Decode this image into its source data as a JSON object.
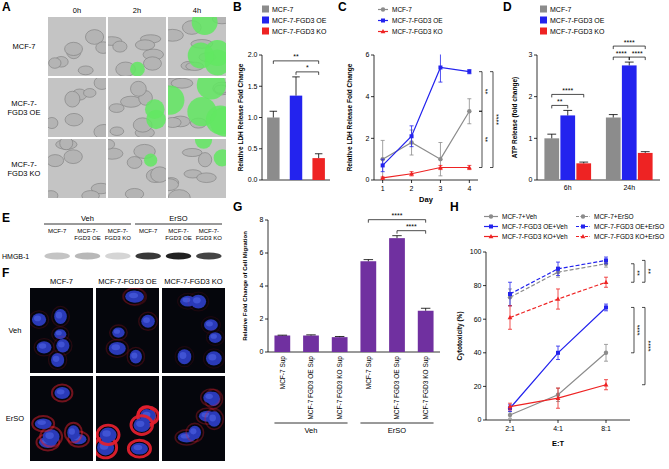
{
  "chart_data": [
    {
      "type": "image_grid",
      "panel": "A",
      "columns": [
        "0h",
        "2h",
        "4h"
      ],
      "rows": [
        "MCF-7",
        "MCF-7-FGD3 OE",
        "MCF-7-FGD3 KO"
      ]
    },
    {
      "type": "bar",
      "panel": "B",
      "y_label": "Relative LDH Release Fold Change",
      "categories": [
        "MCF-7",
        "MCF-7-FGD3 OE",
        "MCF-7-FGD3 KO"
      ],
      "values": [
        1.0,
        1.35,
        0.35
      ],
      "errors": [
        0.1,
        0.3,
        0.07
      ],
      "colors": [
        "#8c8c8c",
        "#2323ee",
        "#ee2323"
      ],
      "ylim": [
        0,
        2
      ],
      "yticks": [
        {
          "value": 0,
          "label": "0.0"
        },
        {
          "value": 0.5,
          "label": "0.5"
        },
        {
          "value": 1,
          "label": "1.0"
        },
        {
          "value": 1.5,
          "label": "1.5"
        },
        {
          "value": 2,
          "label": "2.0"
        }
      ],
      "legend": "top",
      "tick_labels": "y",
      "annotations": [
        "**",
        "*"
      ]
    },
    {
      "type": "line",
      "panel": "C",
      "x_label": "Day",
      "y_label": "Relative LDH Release Fold Change",
      "x": [
        1,
        2,
        3,
        4
      ],
      "xlim": [
        0.7,
        4.3
      ],
      "xticks": [
        1,
        2,
        3,
        4
      ],
      "ylim": [
        0,
        6
      ],
      "yticks": [
        0,
        2,
        4,
        6
      ],
      "legend": "top-left",
      "series": [
        {
          "name": "MCF-7",
          "color": "#8c8c8c",
          "marker": "circle",
          "values": [
            1.0,
            1.8,
            1.0,
            3.3
          ],
          "errors": [
            0.9,
            0.6,
            0.8,
            0.6
          ]
        },
        {
          "name": "MCF-7-FGD3 OE",
          "color": "#2323ee",
          "marker": "square",
          "values": [
            0.7,
            2.1,
            5.4,
            5.2
          ],
          "errors": [
            0.3,
            0.5,
            0.7,
            0.1
          ]
        },
        {
          "name": "MCF-7-FGD3 KO",
          "color": "#ee2323",
          "marker": "triangle",
          "values": [
            0.1,
            0.3,
            0.6,
            0.6
          ],
          "errors": [
            0.05,
            0.1,
            0.1,
            0.1
          ]
        }
      ],
      "annotations": [
        "**",
        "**",
        "****"
      ]
    },
    {
      "type": "bar",
      "panel": "D",
      "y_label": "ATP Release (fold change)",
      "categories": [
        "6h",
        "24h"
      ],
      "series": [
        {
          "name": "MCF-7",
          "color": "#8c8c8c",
          "values": [
            1.0,
            1.5
          ],
          "errors": [
            0.1,
            0.07
          ]
        },
        {
          "name": "MCF-7-FGD3 OE",
          "color": "#2323ee",
          "values": [
            1.55,
            2.75
          ],
          "errors": [
            0.12,
            0.08
          ]
        },
        {
          "name": "MCF-7-FGD3 KO",
          "color": "#ee2323",
          "values": [
            0.4,
            0.65
          ],
          "errors": [
            0.03,
            0.03
          ]
        }
      ],
      "ylim": [
        0,
        3
      ],
      "yticks": [
        0,
        1,
        2,
        3
      ],
      "legend": "top-left",
      "annotations": [
        "**",
        "****",
        "****",
        "****",
        "****"
      ]
    },
    {
      "type": "blot",
      "panel": "E",
      "groups": [
        "Veh",
        "ErSO"
      ],
      "lanes": [
        "MCF-7",
        "MCF-7-FGD3 OE",
        "MCF-7-FGD3 KO"
      ],
      "band_label": "HMGB-1"
    },
    {
      "type": "image_grid",
      "panel": "F",
      "rows": [
        "Veh",
        "ErSO"
      ],
      "columns": [
        "MCF-7",
        "MCF-7-FGD3 OE",
        "MCF-7-FGD3 KO"
      ]
    },
    {
      "type": "bar",
      "panel": "G",
      "y_label": "Relative Fold Change of Cell Migration",
      "categories": [
        "MCF-7 Sup",
        "MCF-7 FGD3 OE Sup",
        "MCF-7 FGD3 KO Sup",
        "MCF-7 Sup",
        "MCF-7 FGD3 OE Sup",
        "MCF-7 FGD3 KO Sup"
      ],
      "groups": [
        "Veh",
        "ErSO"
      ],
      "values": [
        1.0,
        1.0,
        0.9,
        5.5,
        6.9,
        2.5
      ],
      "errors": [
        0.02,
        0.04,
        0.04,
        0.1,
        0.15,
        0.15
      ],
      "color": "#7030a0",
      "ylim": [
        0,
        8
      ],
      "yticks": [
        0,
        2,
        4,
        6,
        8
      ],
      "annotations": [
        "****",
        "****"
      ]
    },
    {
      "type": "line",
      "panel": "H",
      "x_label": "E:T",
      "y_label": "Cytotoxicity (%)",
      "categories": [
        "2:1",
        "4:1",
        "8:1"
      ],
      "ylim": [
        0,
        100
      ],
      "yticks": [
        0,
        20,
        40,
        60,
        80,
        100
      ],
      "legend": "top",
      "series": [
        {
          "name": "MCF-7+Veh",
          "color": "#8c8c8c",
          "marker": "circle",
          "line_style": "solid",
          "values": [
            3,
            15,
            40
          ],
          "errors": [
            2,
            4,
            5
          ]
        },
        {
          "name": "MCF-7-FGD3 OE+Veh",
          "color": "#2323ee",
          "marker": "square",
          "line_style": "solid",
          "values": [
            7,
            40,
            67
          ],
          "errors": [
            2,
            4,
            2
          ]
        },
        {
          "name": "MCF-7-FGD3 KO+Veh",
          "color": "#ee2323",
          "marker": "triangle",
          "line_style": "solid",
          "values": [
            8,
            13,
            21
          ],
          "errors": [
            2,
            6,
            3
          ]
        },
        {
          "name": "MCF-7+ErSO",
          "color": "#8c8c8c",
          "marker": "circle",
          "line_style": "dashed",
          "values": [
            73,
            88,
            93
          ],
          "errors": [
            5,
            3,
            2
          ]
        },
        {
          "name": "MCF-7-FGD3 OE+ErSO",
          "color": "#2323ee",
          "marker": "square",
          "line_style": "dashed",
          "values": [
            75,
            90,
            95
          ],
          "errors": [
            7,
            4,
            2
          ]
        },
        {
          "name": "MCF-7-FGD3 KO+ErSO",
          "color": "#ee2323",
          "marker": "triangle",
          "line_style": "dashed",
          "values": [
            61,
            72,
            82
          ],
          "errors": [
            7,
            6,
            3
          ]
        }
      ],
      "annotations": [
        "**",
        "**",
        "****",
        "****"
      ]
    }
  ]
}
